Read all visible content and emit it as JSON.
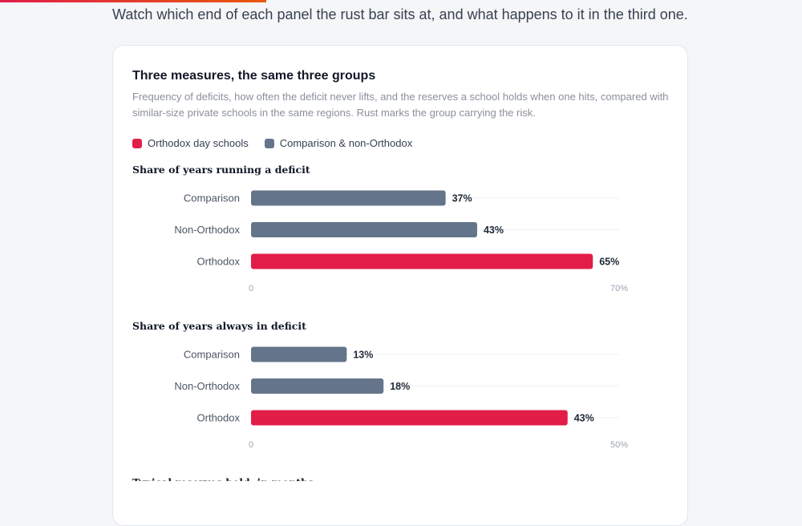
{
  "intro": "Watch which end of each panel the rust bar sits at, and what happens to it in the third one.",
  "card": {
    "title": "Three measures, the same three groups",
    "subtitle": "Frequency of deficits, how often the deficit never lifts, and the reserves a school holds when one hits, compared with similar-size private schools in the same regions. Rust marks the group carrying the risk."
  },
  "legend": [
    {
      "label": "Orthodox day schools",
      "color": "#e11d48"
    },
    {
      "label": "Comparison & non-Orthodox",
      "color": "#64748b"
    }
  ],
  "colors": {
    "highlight": "#e11d48",
    "base": "#64748b",
    "grid": "#eef0f3"
  },
  "chart_data": [
    {
      "type": "bar",
      "orientation": "horizontal",
      "title": "Share of years running a deficit",
      "categories": [
        "Comparison",
        "Non-Orthodox",
        "Orthodox"
      ],
      "values": [
        37,
        43,
        65
      ],
      "value_labels": [
        "37%",
        "43%",
        "65%"
      ],
      "highlight": "Orthodox",
      "xlim": [
        0,
        70
      ],
      "tick_labels": [
        "0",
        "70%"
      ]
    },
    {
      "type": "bar",
      "orientation": "horizontal",
      "title": "Share of years always in deficit",
      "categories": [
        "Comparison",
        "Non-Orthodox",
        "Orthodox"
      ],
      "values": [
        13,
        18,
        43
      ],
      "value_labels": [
        "13%",
        "18%",
        "43%"
      ],
      "highlight": "Orthodox",
      "xlim": [
        0,
        50
      ],
      "tick_labels": [
        "0",
        "50%"
      ]
    },
    {
      "type": "bar",
      "orientation": "horizontal",
      "title": "Typical reserves held, in months",
      "categories": [],
      "values": []
    }
  ]
}
